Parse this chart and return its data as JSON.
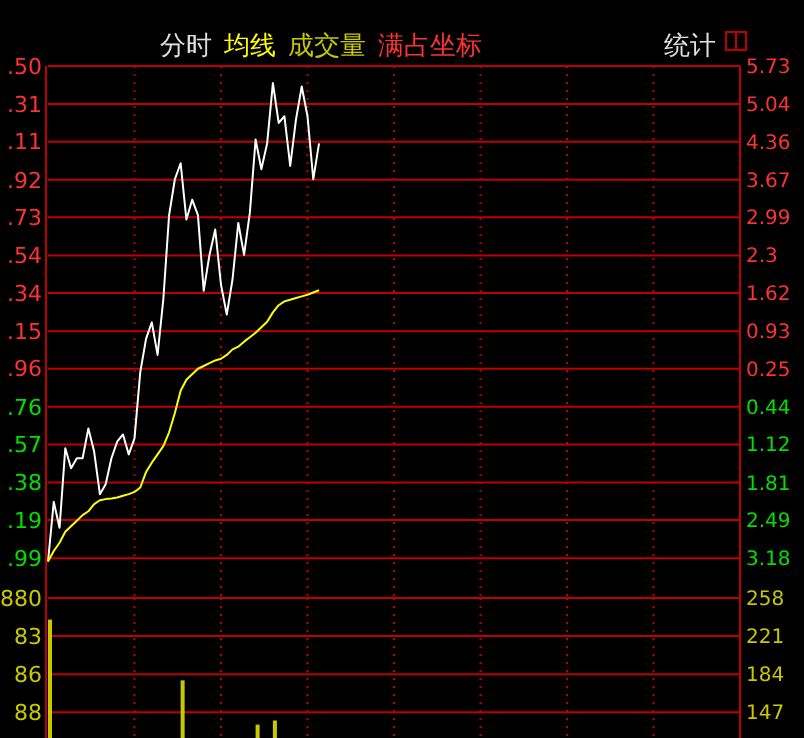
{
  "chart_data": [
    {
      "type": "line",
      "annotations": [
        "分时",
        "满占坐标",
        "统计",
        ".50",
        ".31",
        ".11",
        ".92",
        ".73",
        ".54",
        ".34",
        ".15",
        ".96",
        ".76",
        ".57",
        ".38",
        ".19",
        ".99"
      ],
      "grid": true,
      "tick_labels": "y",
      "categories": [
        null,
        null,
        null,
        null,
        null,
        null,
        null,
        null,
        null,
        null,
        null,
        null,
        null,
        null,
        null,
        null,
        null,
        null,
        null,
        null,
        null,
        null,
        null,
        null,
        null,
        null,
        null,
        null,
        null,
        null,
        null,
        null,
        null,
        null,
        null,
        null,
        null,
        null,
        null,
        null,
        null,
        null,
        null,
        null,
        null,
        null,
        null,
        null,
        null,
        null,
        null,
        null,
        null,
        null,
        null,
        null,
        null,
        null,
        null,
        null,
        null,
        null,
        null,
        null,
        null,
        null,
        null,
        null,
        null,
        null,
        null,
        null,
        null,
        null,
        null,
        null,
        null,
        null,
        null,
        null,
        null,
        null,
        null,
        null,
        null,
        null,
        null,
        null,
        null,
        null,
        null,
        null,
        null,
        null,
        null,
        null,
        null,
        null,
        null,
        null,
        null,
        null,
        null,
        null,
        null,
        null,
        null,
        null,
        null,
        null,
        null,
        null,
        null,
        null,
        null,
        null,
        null,
        null,
        null,
        null,
        null
      ],
      "ylim": [
        -3.9,
        5.73
      ],
      "yticks": [
        5.73,
        5.04,
        4.36,
        3.67,
        2.99,
        2.3,
        1.62,
        0.93,
        0.25,
        {
          "value": -0.44,
          "label": "0.44"
        },
        {
          "value": -1.12,
          "label": "1.12"
        },
        {
          "value": -1.81,
          "label": "1.81"
        },
        {
          "value": -2.49,
          "label": "2.49"
        },
        {
          "value": -3.18,
          "label": "3.18"
        }
      ],
      "series": [
        {
          "color": "#ffffff",
          "values": [
            -3.24,
            -2.16,
            -2.63,
            -1.19,
            -1.55,
            -1.37,
            -1.37,
            -0.83,
            -1.25,
            -2.02,
            -1.84,
            -1.37,
            -1.07,
            -0.94,
            -1.3,
            -1.01,
            0.19,
            0.79,
            1.09,
            0.5,
            1.51,
            3.03,
            3.68,
            3.97,
            2.95,
            3.31,
            3.03,
            1.66,
            2.31,
            2.77,
            1.77,
            1.23,
            1.87,
            2.89,
            2.31,
            3.07,
            4.4,
            3.86,
            4.33,
            5.42,
            4.7,
            4.82,
            3.92,
            4.76,
            5.36,
            4.82,
            3.68,
            4.33,
            null,
            null,
            null,
            null,
            null,
            null,
            null,
            null,
            null,
            null,
            null,
            null,
            null,
            null,
            null,
            null,
            null,
            null,
            null,
            null,
            null,
            null,
            null,
            null,
            null,
            null,
            null,
            null,
            null,
            null,
            null,
            null,
            null,
            null,
            null,
            null,
            null,
            null,
            null,
            null,
            null,
            null,
            null,
            null,
            null,
            null,
            null,
            null,
            null,
            null,
            null,
            null,
            null,
            null,
            null,
            null,
            null,
            null,
            null,
            null,
            null,
            null,
            null,
            null,
            null,
            null,
            null,
            null,
            null,
            null,
            null,
            null,
            null
          ]
        },
        {
          "name": "均线",
          "color": "#ffff00",
          "values": [
            -3.24,
            -3.05,
            -2.9,
            -2.7,
            -2.6,
            -2.5,
            -2.4,
            -2.33,
            -2.2,
            -2.13,
            -2.11,
            -2.1,
            -2.08,
            -2.05,
            -2.02,
            -1.98,
            -1.9,
            -1.62,
            -1.45,
            -1.3,
            -1.15,
            -0.9,
            -0.55,
            -0.15,
            0.05,
            0.15,
            0.25,
            0.3,
            0.35,
            0.4,
            0.43,
            0.5,
            0.6,
            0.65,
            0.74,
            0.82,
            0.9,
            1.0,
            1.1,
            1.27,
            1.4,
            1.47,
            1.5,
            1.53,
            1.56,
            1.59,
            1.63,
            1.67,
            null,
            null,
            null,
            null,
            null,
            null,
            null,
            null,
            null,
            null,
            null,
            null,
            null,
            null,
            null,
            null,
            null,
            null,
            null,
            null,
            null,
            null,
            null,
            null,
            null,
            null,
            null,
            null,
            null,
            null,
            null,
            null,
            null,
            null,
            null,
            null,
            null,
            null,
            null,
            null,
            null,
            null,
            null,
            null,
            null,
            null,
            null,
            null,
            null,
            null,
            null,
            null,
            null,
            null,
            null,
            null,
            null,
            null,
            null,
            null,
            null,
            null,
            null,
            null,
            null,
            null,
            null,
            null,
            null,
            null,
            null,
            null,
            null
          ]
        }
      ]
    },
    {
      "type": "bar",
      "annotations": [
        "880",
        "83",
        "86",
        "88"
      ],
      "grid": true,
      "tick_labels": "y",
      "categories": [
        null,
        null,
        null,
        null,
        null,
        null,
        null,
        null,
        null,
        null,
        null,
        null,
        null,
        null,
        null,
        null,
        null,
        null,
        null,
        null,
        null,
        null,
        null,
        null,
        null,
        null,
        null,
        null,
        null,
        null,
        null,
        null,
        null,
        null,
        null,
        null,
        null,
        null,
        null,
        null,
        null,
        null,
        null,
        null,
        null,
        null,
        null,
        null,
        null,
        null,
        null,
        null,
        null,
        null,
        null,
        null,
        null,
        null,
        null,
        null,
        null,
        null,
        null,
        null,
        null,
        null,
        null,
        null,
        null,
        null,
        null,
        null,
        null,
        null,
        null,
        null,
        null,
        null,
        null,
        null,
        null,
        null,
        null,
        null,
        null,
        null,
        null,
        null,
        null,
        null,
        null,
        null,
        null,
        null,
        null,
        null,
        null,
        null,
        null,
        null,
        null,
        null,
        null,
        null,
        null,
        null,
        null,
        null,
        null,
        null,
        null,
        null,
        null,
        null,
        null,
        null,
        null,
        null,
        null,
        null,
        null
      ],
      "ylim": [
        122,
        258
      ],
      "yticks": [
        258,
        221,
        184,
        147
      ],
      "series": [
        {
          "name": "成交量",
          "color": "#c8c800",
          "values": [
            237,
            null,
            null,
            null,
            null,
            null,
            null,
            null,
            null,
            null,
            null,
            null,
            null,
            null,
            null,
            null,
            null,
            null,
            null,
            null,
            null,
            null,
            null,
            178,
            null,
            null,
            null,
            null,
            null,
            null,
            null,
            null,
            null,
            null,
            null,
            null,
            135,
            null,
            null,
            139,
            null,
            null,
            null,
            null,
            null,
            null,
            null,
            null,
            null,
            null,
            null,
            null,
            null,
            null,
            null,
            null,
            null,
            null,
            null,
            null,
            null,
            null,
            null,
            null,
            null,
            null,
            null,
            null,
            null,
            null,
            null,
            null,
            null,
            null,
            null,
            null,
            null,
            null,
            null,
            null,
            null,
            null,
            null,
            null,
            null,
            null,
            null,
            null,
            null,
            null,
            null,
            null,
            null,
            null,
            null,
            null,
            null,
            null,
            null,
            null,
            null,
            null,
            null,
            null,
            null,
            null,
            null,
            null,
            null,
            null,
            null,
            null,
            null,
            null,
            null,
            null,
            null,
            null,
            null,
            null,
            null
          ]
        }
      ]
    }
  ]
}
